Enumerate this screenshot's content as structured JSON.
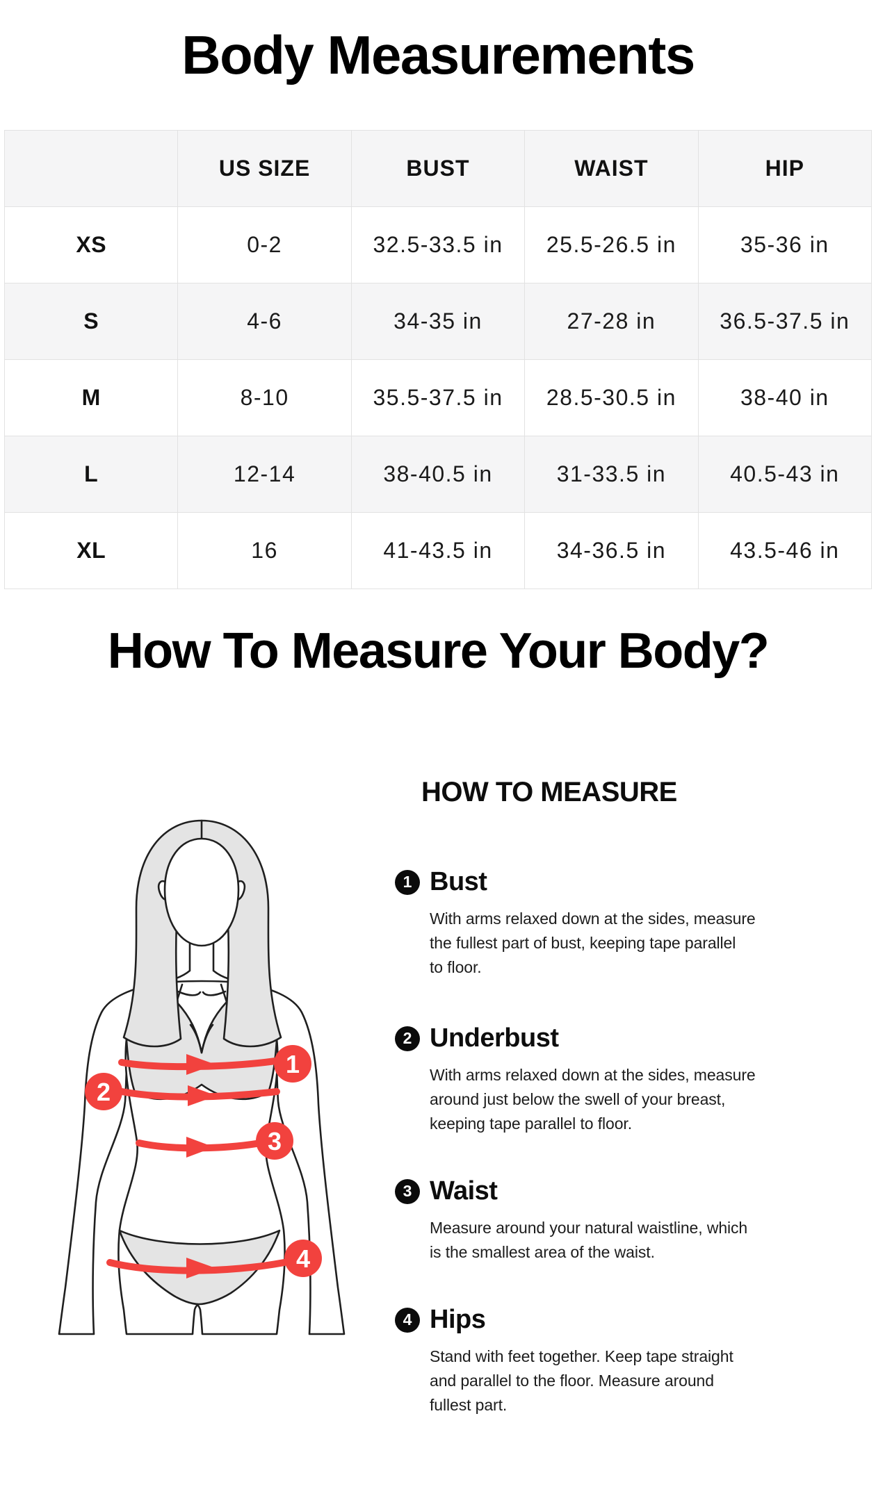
{
  "page": {
    "title": "Body Measurements",
    "subtitle": "How To Measure Your Body?"
  },
  "size_table": {
    "columns": [
      "",
      "US SIZE",
      "BUST",
      "WAIST",
      "HIP"
    ],
    "rows": [
      [
        "XS",
        "0-2",
        "32.5-33.5 in",
        "25.5-26.5 in",
        "35-36 in"
      ],
      [
        "S",
        "4-6",
        "34-35 in",
        "27-28 in",
        "36.5-37.5 in"
      ],
      [
        "M",
        "8-10",
        "35.5-37.5 in",
        "28.5-30.5 in",
        "38-40 in"
      ],
      [
        "L",
        "12-14",
        "38-40.5 in",
        "31-33.5 in",
        "40.5-43 in"
      ],
      [
        "XL",
        "16",
        "41-43.5 in",
        "34-36.5 in",
        "43.5-46 in"
      ]
    ]
  },
  "measure_guide": {
    "heading": "HOW TO MEASURE",
    "sections": [
      {
        "number": "1",
        "label": "Bust",
        "text": "With arms relaxed down at the sides, measure\nthe fullest part of bust, keeping tape parallel\nto floor."
      },
      {
        "number": "2",
        "label": "Underbust",
        "text": "With arms relaxed down at the sides, measure\naround just below the swell of your breast,\nkeeping tape parallel to floor."
      },
      {
        "number": "3",
        "label": "Waist",
        "text": "Measure around your natural waistline, which\nis the smallest area of the waist."
      },
      {
        "number": "4",
        "label": "Hips",
        "text": "Stand with feet together. Keep tape straight\nand parallel to the floor. Measure around\nfullest part."
      }
    ]
  },
  "colors": {
    "accent_red": "#F2423E",
    "table_stripe": "#F5F5F6",
    "table_border": "#E2E2E2",
    "figure_fill": "#E4E4E4",
    "line": "#1F1F1F"
  }
}
